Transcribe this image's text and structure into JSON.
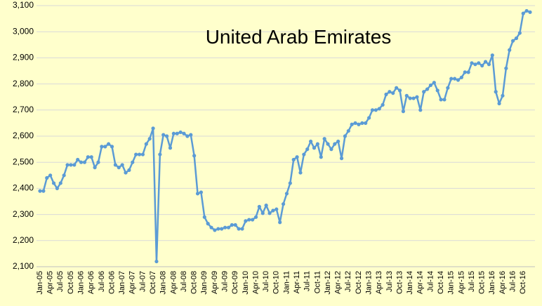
{
  "chart_data": {
    "type": "line",
    "title": "United Arab Emirates",
    "categories": [
      "Jan-05",
      null,
      null,
      "Apr-05",
      null,
      null,
      "Jul-05",
      null,
      null,
      "Oct-05",
      null,
      null,
      "Jan-06",
      null,
      null,
      "Apr-06",
      null,
      null,
      "Jul-06",
      null,
      null,
      "Oct-06",
      null,
      null,
      "Jan-07",
      null,
      null,
      "Apr-07",
      null,
      null,
      "Jul-07",
      null,
      null,
      "Oct-07",
      null,
      null,
      "Jan-08",
      null,
      null,
      "Apr-08",
      null,
      null,
      "Jul-08",
      null,
      null,
      "Oct-08",
      null,
      null,
      "Jan-09",
      null,
      null,
      "Apr-09",
      null,
      null,
      "Jul-09",
      null,
      null,
      "Oct-09",
      null,
      null,
      "Jan-10",
      null,
      null,
      "Apr-10",
      null,
      null,
      "Jul-10",
      null,
      null,
      "Oct-10",
      null,
      null,
      "Jan-11",
      null,
      null,
      "Apr-11",
      null,
      null,
      "Jul-11",
      null,
      null,
      "Oct-11",
      null,
      null,
      "Jan-12",
      null,
      null,
      "Apr-12",
      null,
      null,
      "Jul-12",
      null,
      null,
      "Oct-12",
      null,
      null,
      "Jan-13",
      null,
      null,
      "Apr-13",
      null,
      null,
      "Jul-13",
      null,
      null,
      "Oct-13",
      null,
      null,
      "Jan-14",
      null,
      null,
      "Apr-14",
      null,
      null,
      "Jul-14",
      null,
      null,
      "Oct-14",
      null,
      null,
      "Jan-15",
      null,
      null,
      "Apr-15",
      null,
      null,
      "Jul-15",
      null,
      null,
      "Oct-15",
      null,
      null,
      "Jan-16",
      null,
      null,
      "Apr-16",
      null,
      null,
      "Jul-16",
      null,
      null,
      "Oct-16",
      null,
      null
    ],
    "values": [
      2390,
      2390,
      2440,
      2450,
      2420,
      2400,
      2420,
      2450,
      2490,
      2490,
      2490,
      2510,
      2500,
      2500,
      2520,
      2520,
      2480,
      2500,
      2560,
      2560,
      2570,
      2560,
      2490,
      2480,
      2490,
      2460,
      2470,
      2500,
      2530,
      2530,
      2530,
      2570,
      2590,
      2630,
      2120,
      2530,
      2605,
      2600,
      2555,
      2610,
      2610,
      2615,
      2610,
      2600,
      2605,
      2525,
      2380,
      2385,
      2290,
      2265,
      2250,
      2240,
      2245,
      2245,
      2250,
      2250,
      2260,
      2260,
      2245,
      2245,
      2275,
      2280,
      2280,
      2290,
      2330,
      2305,
      2335,
      2305,
      2315,
      2320,
      2270,
      2340,
      2380,
      2420,
      2510,
      2520,
      2460,
      2530,
      2550,
      2580,
      2555,
      2570,
      2520,
      2590,
      2570,
      2550,
      2570,
      2580,
      2515,
      2600,
      2620,
      2645,
      2650,
      2645,
      2650,
      2650,
      2670,
      2700,
      2700,
      2705,
      2720,
      2760,
      2770,
      2765,
      2785,
      2775,
      2695,
      2755,
      2745,
      2745,
      2750,
      2700,
      2770,
      2780,
      2795,
      2805,
      2775,
      2740,
      2740,
      2785,
      2820,
      2820,
      2815,
      2825,
      2845,
      2845,
      2880,
      2875,
      2880,
      2870,
      2885,
      2875,
      2910,
      2770,
      2725,
      2755,
      2860,
      2930,
      2965,
      2975,
      2995,
      3070,
      3080,
      3075
    ],
    "color": "#5b9bd5",
    "ylim": [
      2100,
      3100
    ],
    "yticks": [
      {
        "value": 2100,
        "label": "2,100"
      },
      {
        "value": 2200,
        "label": "2,200"
      },
      {
        "value": 2300,
        "label": "2,300"
      },
      {
        "value": 2400,
        "label": "2,400"
      },
      {
        "value": 2500,
        "label": "2,500"
      },
      {
        "value": 2600,
        "label": "2,600"
      },
      {
        "value": 2700,
        "label": "2,700"
      },
      {
        "value": 2800,
        "label": "2,800"
      },
      {
        "value": 2900,
        "label": "2,900"
      },
      {
        "value": 3000,
        "label": "3,000"
      },
      {
        "value": 3100,
        "label": "3,100"
      }
    ],
    "grid": true
  }
}
